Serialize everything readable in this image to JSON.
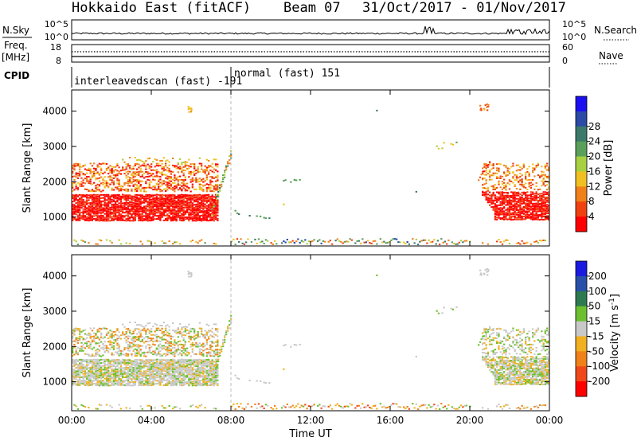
{
  "header": {
    "radar": "Hokkaido East (fitACF)",
    "beam": "Beam 07",
    "dates": "31/Oct/2017 - 01/Nov/2017"
  },
  "top_panels": {
    "nsky_label": "N.Sky",
    "nsky_ticks": [
      "10^5",
      "10^0"
    ],
    "nsearch_label": "N.Search",
    "nsearch_ticks": [
      "10^5",
      "10^0"
    ],
    "freq_label": "Freq.",
    "freq_unit": "[MHz]",
    "freq_ticks": [
      "18",
      "8"
    ],
    "nave_label": "Nave",
    "nave_ticks": [
      "60",
      "0"
    ],
    "cpid_label": "CPID"
  },
  "cpid_segments": [
    {
      "label": "interleavedscan (fast) -191",
      "start_hour": 0,
      "end_hour": 8
    },
    {
      "label": "normal (fast) 151",
      "start_hour": 8,
      "end_hour": 24
    }
  ],
  "chart_data": [
    {
      "type": "heatmap",
      "panel": "power",
      "ylabel": "Slant Range [km]",
      "ylim": [
        180,
        4600
      ],
      "yticks": [
        "1000",
        "2000",
        "3000",
        "4000"
      ],
      "xlim": [
        "00:00",
        "00:00"
      ],
      "xticks": [
        "00:00",
        "04:00",
        "08:00",
        "12:00",
        "16:00",
        "20:00",
        "00:00"
      ],
      "colorbar": {
        "label": "Power [dB]",
        "ticks": [
          "4",
          "8",
          "12",
          "16",
          "20",
          "24",
          "28"
        ],
        "colors": [
          "#1a10f0",
          "#2c4aa6",
          "#3b7a6a",
          "#5aa05a",
          "#a8d040",
          "#f0c020",
          "#f08018",
          "#f04010",
          "#ff0000"
        ]
      }
    },
    {
      "type": "heatmap",
      "panel": "velocity",
      "ylabel": "Slant Range [km]",
      "ylim": [
        180,
        4600
      ],
      "yticks": [
        "1000",
        "2000",
        "3000",
        "4000"
      ],
      "xlabel": "Time UT",
      "xticks": [
        "00:00",
        "04:00",
        "08:00",
        "12:00",
        "16:00",
        "20:00",
        "00:00"
      ],
      "colorbar": {
        "label": "Velocity [m s^-1]",
        "ticks": [
          "200",
          "100",
          "50",
          "15",
          "-15",
          "-50",
          "-100",
          "-200"
        ],
        "colors": [
          "#1a1ae0",
          "#2850a8",
          "#2e7a50",
          "#6cc030",
          "#c8c8c8",
          "#f0b020",
          "#f08018",
          "#f04818",
          "#ff0000"
        ]
      }
    }
  ]
}
